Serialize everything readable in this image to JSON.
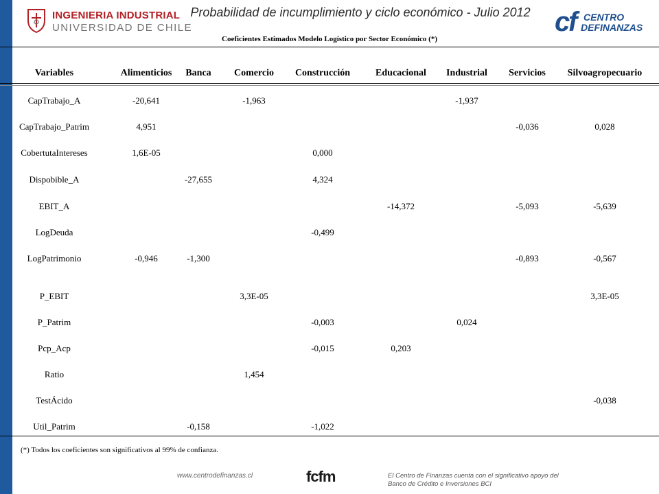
{
  "header": {
    "logo_line1": "INGENIERIA INDUSTRIAL",
    "logo_line2": "UNIVERSIDAD DE CHILE",
    "title": "Probabilidad de incumplimiento y ciclo económico - Julio 2012",
    "subtitle": "Coeficientes Estimados Modelo Logístico por Sector Económico (*)",
    "cf_line1": "CENTRO",
    "cf_line2": "DEFINANZAS"
  },
  "table": {
    "columns": [
      "Variables",
      "Alimenticios",
      "Banca",
      "Comercio",
      "Construcción",
      "Educacional",
      "Industrial",
      "Servicios",
      "Silvoagropecuario"
    ],
    "rows": [
      {
        "variable": "CapTrabajo_A",
        "values": [
          "-20,641",
          "",
          "-1,963",
          "",
          "",
          "-1,937",
          "",
          ""
        ]
      },
      {
        "variable": "CapTrabajo_Patrim",
        "values": [
          "4,951",
          "",
          "",
          "",
          "",
          "",
          "-0,036",
          "0,028"
        ]
      },
      {
        "variable": "CobertutaIntereses",
        "values": [
          "1,6E-05",
          "",
          "",
          "0,000",
          "",
          "",
          "",
          ""
        ]
      },
      {
        "variable": "Dispobible_A",
        "values": [
          "",
          "-27,655",
          "",
          "4,324",
          "",
          "",
          "",
          ""
        ]
      },
      {
        "variable": "EBIT_A",
        "values": [
          "",
          "",
          "",
          "",
          "-14,372",
          "",
          "-5,093",
          "-5,639"
        ]
      },
      {
        "variable": "LogDeuda",
        "values": [
          "",
          "",
          "",
          "-0,499",
          "",
          "",
          "",
          ""
        ]
      },
      {
        "variable": "LogPatrimonio",
        "values": [
          "-0,946",
          "-1,300",
          "",
          "",
          "",
          "",
          "-0,893",
          "-0,567"
        ]
      },
      {
        "variable": "P_EBIT",
        "values": [
          "",
          "",
          "3,3E-05",
          "",
          "",
          "",
          "",
          "3,3E-05"
        ]
      },
      {
        "variable": "P_Patrim",
        "values": [
          "",
          "",
          "",
          "-0,003",
          "",
          "0,024",
          "",
          ""
        ]
      },
      {
        "variable": "Pcp_Acp",
        "values": [
          "",
          "",
          "",
          "-0,015",
          "0,203",
          "",
          "",
          ""
        ]
      },
      {
        "variable": "Ratio",
        "values": [
          "",
          "",
          "1,454",
          "",
          "",
          "",
          "",
          ""
        ]
      },
      {
        "variable": "TestÁcido",
        "values": [
          "",
          "",
          "",
          "",
          "",
          "",
          "",
          "-0,038"
        ]
      },
      {
        "variable": "Util_Patrim",
        "values": [
          "",
          "-0,158",
          "",
          "-1,022",
          "",
          "",
          "",
          ""
        ]
      }
    ]
  },
  "footer": {
    "note": "(*) Todos los coeficientes son significativos al 99% de confianza.",
    "url": "www.centrodefinanzas.cl",
    "fcfm": "fcfm",
    "sponsor": "El Centro de Finanzas cuenta con el significativo apoyo del Banco de Crédito e Inversiones BCI"
  }
}
